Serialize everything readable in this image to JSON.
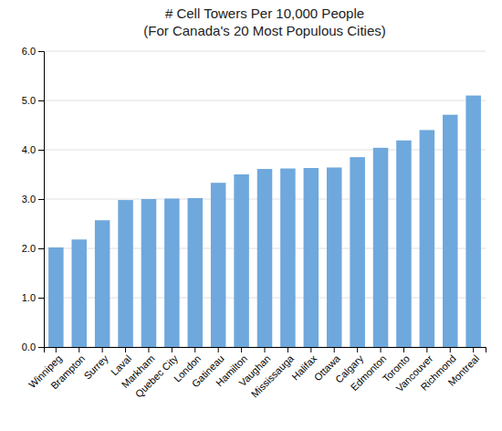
{
  "chart_data": {
    "type": "bar",
    "title": "# Cell Towers Per 10,000 People\n(For Canada's 20 Most Populous Cities)",
    "categories": [
      "Winnipeg",
      "Brampton",
      "Surrey",
      "Laval",
      "Markham",
      "Quebec City",
      "London",
      "Gatineau",
      "Hamilton",
      "Vaughan",
      "Mississauga",
      "Halifax",
      "Ottawa",
      "Calgary",
      "Edmonton",
      "Toronto",
      "Vancouver",
      "Richmond",
      "Montreal"
    ],
    "values": [
      2.02,
      2.18,
      2.57,
      2.98,
      3.0,
      3.01,
      3.02,
      3.33,
      3.5,
      3.61,
      3.62,
      3.63,
      3.64,
      3.85,
      4.04,
      4.19,
      4.4,
      4.71,
      5.1
    ],
    "color": "#6fa8dc",
    "ylim": [
      0.0,
      6.0
    ],
    "yticks": [
      {
        "value": 0.0,
        "label": "0.0"
      },
      {
        "value": 1.0,
        "label": "1.0"
      },
      {
        "value": 2.0,
        "label": "2.0"
      },
      {
        "value": 3.0,
        "label": "3.0"
      },
      {
        "value": 4.0,
        "label": "4.0"
      },
      {
        "value": 5.0,
        "label": "5.0"
      },
      {
        "value": 6.0,
        "label": "6.0"
      }
    ],
    "grid": true
  }
}
